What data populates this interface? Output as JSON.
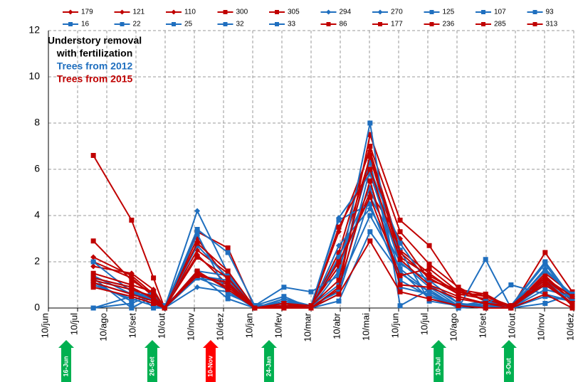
{
  "chart_data": {
    "type": "line",
    "x": [
      1.54,
      2.85,
      3.6,
      3.98,
      5.1,
      6.15,
      7.07,
      8.07,
      9.0,
      9.95,
      11.02,
      12.05,
      13.05,
      14.05,
      14.98,
      15.85,
      17.02,
      17.95
    ],
    "xlim": [
      0,
      18
    ],
    "xticks": [
      {
        "value": 0,
        "label": "10/jun"
      },
      {
        "value": 1,
        "label": "10/jul"
      },
      {
        "value": 2,
        "label": "10/ago"
      },
      {
        "value": 3,
        "label": "10/set"
      },
      {
        "value": 4,
        "label": "10/out"
      },
      {
        "value": 5,
        "label": "10/nov"
      },
      {
        "value": 6,
        "label": "10/dez"
      },
      {
        "value": 7,
        "label": "10/jan"
      },
      {
        "value": 8,
        "label": "10/fev"
      },
      {
        "value": 9,
        "label": "10/mar"
      },
      {
        "value": 10,
        "label": "10/abr"
      },
      {
        "value": 11,
        "label": "10/mai"
      },
      {
        "value": 12,
        "label": "10/jun"
      },
      {
        "value": 13,
        "label": "10/jul"
      },
      {
        "value": 14,
        "label": "10/ago"
      },
      {
        "value": 15,
        "label": "10/set"
      },
      {
        "value": 16,
        "label": "10/out"
      },
      {
        "value": 17,
        "label": "10/nov"
      },
      {
        "value": 18,
        "label": "10/dez"
      }
    ],
    "ylim": [
      0,
      12
    ],
    "yticks": [
      0,
      2,
      4,
      6,
      8,
      10,
      12
    ],
    "grid": true,
    "series": [
      {
        "name": "179",
        "color": "#c00000",
        "marker": "diamond",
        "values": [
          2.2,
          1.4,
          0.6,
          0,
          2.3,
          1.0,
          0,
          0.1,
          0,
          2.1,
          6.5,
          2.2,
          1.4,
          0.7,
          0.5,
          0,
          1.3,
          0.3
        ]
      },
      {
        "name": "121",
        "color": "#c00000",
        "marker": "diamond",
        "values": [
          1.8,
          1.5,
          0.8,
          0,
          2.5,
          1.5,
          0,
          0.1,
          0.1,
          1.8,
          5.0,
          3.0,
          1.2,
          0.8,
          0.3,
          0.1,
          1.2,
          0.4
        ]
      },
      {
        "name": "110",
        "color": "#c00000",
        "marker": "diamond",
        "values": [
          2.0,
          1.3,
          0.5,
          0,
          3.0,
          1.2,
          0,
          0.05,
          0.05,
          3.3,
          6.8,
          2.5,
          1.5,
          0.6,
          0.4,
          0,
          1.4,
          0.3
        ]
      },
      {
        "name": "300",
        "color": "#c00000",
        "marker": "square",
        "values": [
          6.6,
          3.8,
          1.3,
          0,
          1.5,
          1.0,
          0,
          0.1,
          0,
          0.8,
          7.5,
          3.8,
          2.7,
          0.8,
          0.6,
          0,
          2.4,
          0.7
        ]
      },
      {
        "name": "305",
        "color": "#c00000",
        "marker": "square",
        "values": [
          2.9,
          1.2,
          0.6,
          0,
          3.3,
          2.6,
          0,
          0,
          0,
          2.4,
          7.0,
          3.3,
          1.9,
          0.9,
          0.3,
          0,
          1.5,
          0.6
        ]
      },
      {
        "name": "294",
        "color": "#1f6fbf",
        "marker": "diamond",
        "values": [
          1.1,
          0.6,
          0.6,
          0,
          4.2,
          1.5,
          0,
          0.4,
          0.1,
          3.9,
          5.8,
          1.9,
          1.2,
          0.2,
          0.1,
          0,
          1.7,
          0.5
        ]
      },
      {
        "name": "270",
        "color": "#1f6fbf",
        "marker": "diamond",
        "values": [
          1.2,
          0.8,
          0.3,
          0,
          0.9,
          0.7,
          0,
          0.3,
          0,
          2.7,
          4.3,
          2.0,
          0.9,
          0.1,
          0,
          0,
          1.0,
          0.4
        ]
      },
      {
        "name": "125",
        "color": "#1f6fbf",
        "marker": "square",
        "values": [
          1.3,
          0.9,
          0,
          0,
          3.4,
          2.4,
          0.1,
          0.9,
          0.7,
          1.4,
          8.0,
          0.1,
          0.8,
          0,
          2.1,
          0,
          0.2,
          0.6
        ]
      },
      {
        "name": "107",
        "color": "#1f6fbf",
        "marker": "square",
        "values": [
          0,
          0.2,
          0.6,
          0,
          1.5,
          0.4,
          0,
          0.1,
          0,
          0.3,
          3.3,
          1.5,
          0.7,
          0,
          0.1,
          1.0,
          0.6,
          0.3
        ]
      },
      {
        "name": "93",
        "color": "#1f6fbf",
        "marker": "square",
        "values": [
          2.0,
          0.7,
          0.4,
          0.1,
          1.3,
          1.1,
          0,
          0.1,
          0.1,
          0.7,
          6.0,
          2.8,
          1.0,
          0.2,
          0,
          0.1,
          2.0,
          0.4
        ]
      },
      {
        "name": "16",
        "color": "#1f6fbf",
        "marker": "square",
        "values": [
          1.3,
          0,
          0.5,
          0,
          3.2,
          0.6,
          0.1,
          0.2,
          0.1,
          1.0,
          4.0,
          1.7,
          0.7,
          0.1,
          0.1,
          0,
          0.5,
          0.3
        ]
      },
      {
        "name": "22",
        "color": "#1f6fbf",
        "marker": "square",
        "values": [
          0,
          0.5,
          0.2,
          0.1,
          1.4,
          1.2,
          0.1,
          0.5,
          0,
          2.2,
          5.2,
          1.6,
          0.4,
          0.1,
          0,
          0.1,
          1.9,
          0.3
        ]
      },
      {
        "name": "25",
        "color": "#1f6fbf",
        "marker": "square",
        "values": [
          1.1,
          0.3,
          0.7,
          0,
          1.3,
          0.8,
          0,
          0.4,
          0,
          0.6,
          4.8,
          2.5,
          0.3,
          0.1,
          0.3,
          0,
          0.8,
          0.5
        ]
      },
      {
        "name": "32",
        "color": "#1f6fbf",
        "marker": "square",
        "values": [
          1.4,
          0.6,
          0.4,
          0,
          2.7,
          1.3,
          0.1,
          0.1,
          0,
          1.6,
          6.3,
          0.9,
          0.6,
          0,
          0.1,
          0.1,
          1.6,
          0.6
        ]
      },
      {
        "name": "33",
        "color": "#1f6fbf",
        "marker": "square",
        "values": [
          1.0,
          0.4,
          0.1,
          0,
          1.6,
          1.4,
          0,
          0.3,
          0.1,
          3.8,
          4.5,
          1.2,
          0.5,
          0.1,
          0.2,
          0,
          1.2,
          0.2
        ]
      },
      {
        "name": "86",
        "color": "#c00000",
        "marker": "square",
        "values": [
          1.2,
          0.8,
          0.5,
          0,
          1.4,
          1.1,
          0,
          0.1,
          0,
          3.5,
          6.0,
          2.1,
          1.0,
          0.5,
          0.2,
          0.1,
          1.0,
          0.2
        ]
      },
      {
        "name": "177",
        "color": "#c00000",
        "marker": "square",
        "values": [
          1.1,
          0.6,
          0.3,
          0,
          1.5,
          0.9,
          0,
          0.2,
          0,
          0.6,
          2.9,
          0.7,
          0.4,
          0.1,
          0,
          0,
          0.6,
          0
        ]
      },
      {
        "name": "236",
        "color": "#c00000",
        "marker": "square",
        "values": [
          1.5,
          1.0,
          0.7,
          0,
          2.8,
          1.6,
          0,
          0.1,
          0.1,
          2.0,
          4.8,
          1.4,
          1.7,
          0.7,
          0.5,
          0.1,
          1.3,
          0.5
        ]
      },
      {
        "name": "285",
        "color": "#c00000",
        "marker": "square",
        "values": [
          1.3,
          0.9,
          0.4,
          0,
          2.2,
          1.3,
          0,
          0,
          0,
          0.9,
          5.5,
          1.0,
          0.9,
          0.4,
          0.2,
          0,
          1.1,
          0.2
        ]
      },
      {
        "name": "313",
        "color": "#c00000",
        "marker": "square",
        "values": [
          0.9,
          0.5,
          0.2,
          0,
          1.6,
          0.8,
          0,
          0.2,
          0.1,
          1.2,
          6.6,
          2.4,
          1.3,
          0.6,
          0.6,
          0,
          1.2,
          0.1
        ]
      }
    ],
    "annotations": [
      {
        "text": "Understory removal",
        "color": "#000000"
      },
      {
        "text": "with fertilization",
        "color": "#000000"
      },
      {
        "text": "Trees from 2012",
        "color": "#1f6fbf"
      },
      {
        "text": "Trees from 2015",
        "color": "#c00000"
      }
    ],
    "arrows": [
      {
        "text": "16-Jun",
        "x": 0.61,
        "color": "#00b050"
      },
      {
        "text": "26-Set",
        "x": 3.56,
        "color": "#00b050"
      },
      {
        "text": "10-Nov",
        "x": 5.56,
        "color": "#ff0000"
      },
      {
        "text": "24-Jan",
        "x": 7.56,
        "color": "#00b050"
      },
      {
        "text": "10-Jul",
        "x": 13.37,
        "color": "#00b050"
      },
      {
        "text": "3-Out",
        "x": 15.78,
        "color": "#00b050"
      }
    ]
  }
}
